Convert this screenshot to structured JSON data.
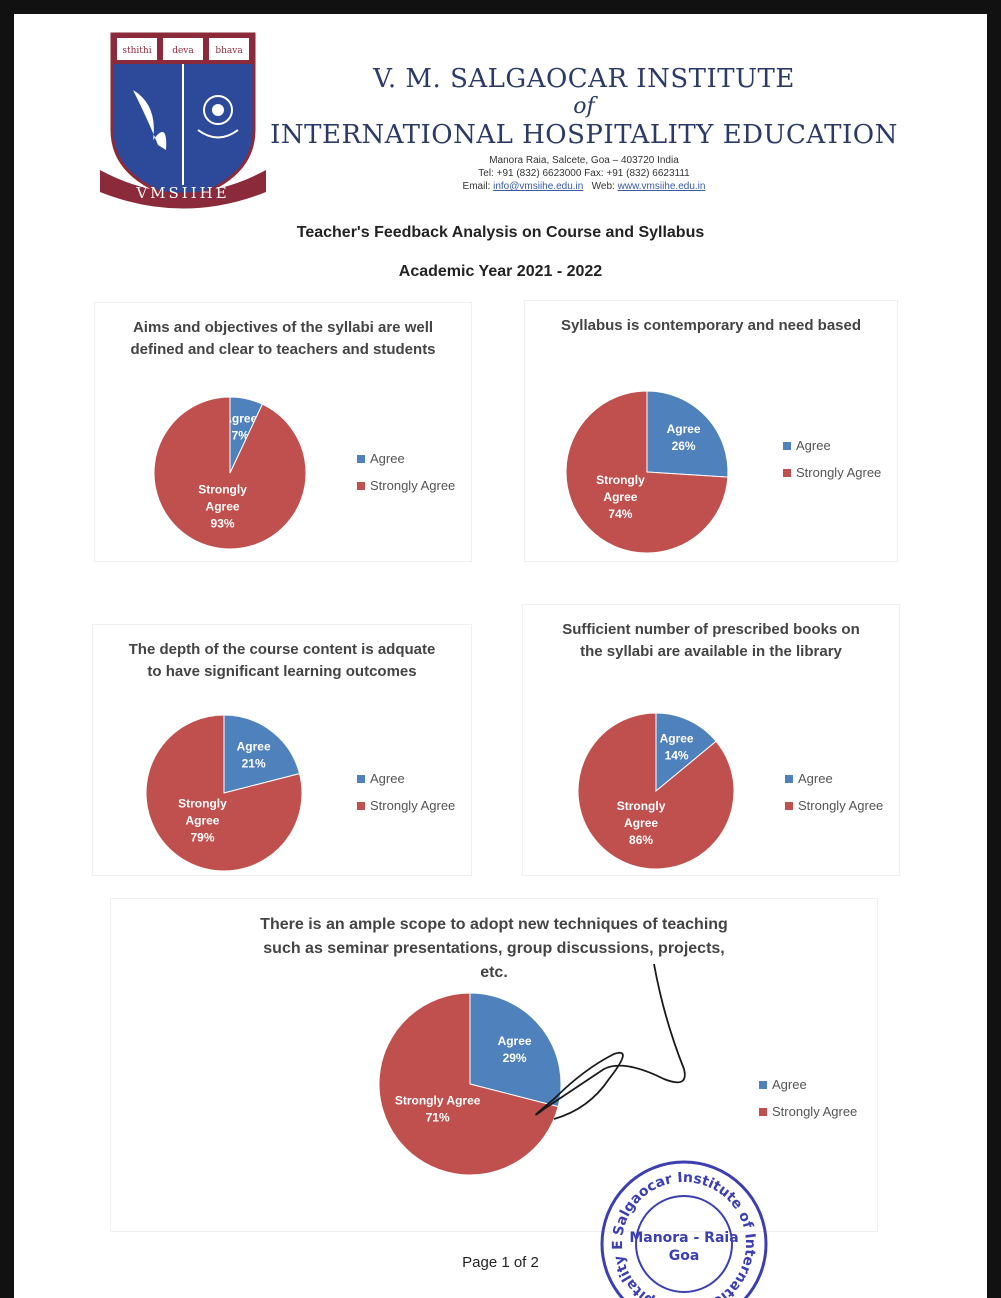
{
  "header": {
    "logo_words": [
      "sthithi",
      "deva",
      "bhava"
    ],
    "logo_banner": "VMSIIHE",
    "line1": "V. M. SALGAOCAR INSTITUTE",
    "of": "of",
    "line2": "INTERNATIONAL HOSPITALITY EDUCATION",
    "address": "Manora Raia, Salcete, Goa – 403720 India",
    "phone": "Tel: +91 (832) 6623000   Fax: +91 (832) 6623111",
    "email_label": "Email:",
    "email": "info@vmsiihe.edu.in",
    "web_label": "Web:",
    "web": "www.vmsiihe.edu.in"
  },
  "document": {
    "title": "Teacher's Feedback Analysis on Course and Syllabus",
    "subtitle": "Academic Year 2021 - 2022"
  },
  "colors": {
    "agree": "#4f81bd",
    "strongly_agree": "#c0504d"
  },
  "legend_labels": [
    "Agree",
    "Strongly Agree"
  ],
  "chart_data": [
    {
      "type": "pie",
      "title": "Aims and objectives of the syllabi are well defined and clear to teachers and students",
      "categories": [
        "Agree",
        "Strongly Agree"
      ],
      "values": [
        7,
        93
      ],
      "data_labels": [
        [
          "Agree",
          "7%"
        ],
        [
          "Strongly",
          "Agree",
          "93%"
        ]
      ]
    },
    {
      "type": "pie",
      "title": "Syllabus is contemporary and need based",
      "categories": [
        "Agree",
        "Strongly Agree"
      ],
      "values": [
        26,
        74
      ],
      "data_labels": [
        [
          "Agree",
          "26%"
        ],
        [
          "Strongly",
          "Agree",
          "74%"
        ]
      ]
    },
    {
      "type": "pie",
      "title": "The depth of the course content is adquate to have significant learning outcomes",
      "categories": [
        "Agree",
        "Strongly Agree"
      ],
      "values": [
        21,
        79
      ],
      "data_labels": [
        [
          "Agree",
          "21%"
        ],
        [
          "Strongly",
          "Agree",
          "79%"
        ]
      ]
    },
    {
      "type": "pie",
      "title": "Sufficient number of prescribed books on the syllabi are available in the library",
      "categories": [
        "Agree",
        "Strongly Agree"
      ],
      "values": [
        14,
        86
      ],
      "data_labels": [
        [
          "Agree",
          "14%"
        ],
        [
          "Strongly",
          "Agree",
          "86%"
        ]
      ]
    },
    {
      "type": "pie",
      "title": "There is an ample scope to adopt new techniques of teaching such as seminar presentations, group discussions, projects, etc.",
      "categories": [
        "Agree",
        "Strongly Agree"
      ],
      "values": [
        29,
        71
      ],
      "data_labels": [
        [
          "Agree",
          "29%"
        ],
        [
          "Strongly Agree",
          "71%"
        ]
      ]
    }
  ],
  "stamp": {
    "ring_text": "Salgaocar Institute of International Hospitality Education",
    "center_line1": "Manora - Raia",
    "center_line2": "Goa"
  },
  "footer": {
    "page_label": "Page 1 of 2"
  }
}
